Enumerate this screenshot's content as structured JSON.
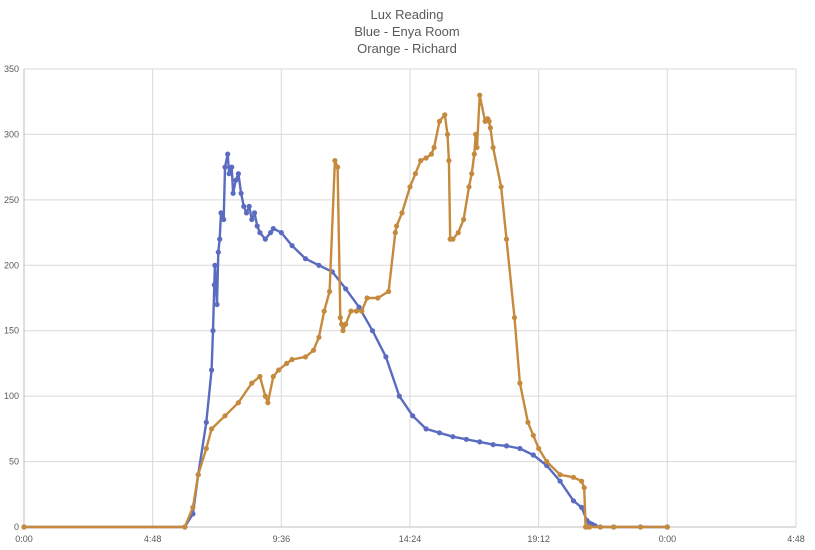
{
  "chart_data": {
    "type": "line",
    "title_lines": [
      "Lux Reading",
      "Blue - Enya Room",
      "Orange - Richard"
    ],
    "xlabel": "",
    "ylabel": "",
    "x_unit": "hours since first midnight",
    "xlim": [
      0,
      28.8
    ],
    "ylim": [
      0,
      350
    ],
    "x_ticks": [
      {
        "value": 0,
        "label": "0:00"
      },
      {
        "value": 4.8,
        "label": "4:48"
      },
      {
        "value": 9.6,
        "label": "9:36"
      },
      {
        "value": 14.4,
        "label": "14:24"
      },
      {
        "value": 19.2,
        "label": "19:12"
      },
      {
        "value": 24,
        "label": "0:00"
      },
      {
        "value": 28.8,
        "label": "4:48"
      }
    ],
    "y_ticks": [
      0,
      50,
      100,
      150,
      200,
      250,
      300,
      350
    ],
    "grid": true,
    "legend": "none",
    "series": [
      {
        "color": "#5b6cc0",
        "x": [
          0,
          6.0,
          6.3,
          6.5,
          6.8,
          7.0,
          7.05,
          7.1,
          7.12,
          7.2,
          7.25,
          7.3,
          7.35,
          7.45,
          7.5,
          7.6,
          7.65,
          7.75,
          7.8,
          7.9,
          8.0,
          8.1,
          8.2,
          8.3,
          8.4,
          8.5,
          8.6,
          8.7,
          8.8,
          9.0,
          9.2,
          9.3,
          9.6,
          10.0,
          10.5,
          11.0,
          11.5,
          12.0,
          12.5,
          13.0,
          13.5,
          14.0,
          14.5,
          15.0,
          15.5,
          16.0,
          16.5,
          17.0,
          17.5,
          18.0,
          18.5,
          19.0,
          19.5,
          20.0,
          20.5,
          20.8,
          21.0,
          21.1,
          21.2,
          21.3,
          21.5,
          22.0,
          23.0,
          24.0
        ],
        "y": [
          0,
          0,
          10,
          40,
          80,
          120,
          150,
          185,
          200,
          170,
          210,
          220,
          240,
          235,
          275,
          285,
          270,
          275,
          255,
          265,
          270,
          255,
          245,
          240,
          245,
          235,
          240,
          230,
          225,
          220,
          225,
          228,
          225,
          215,
          205,
          200,
          195,
          182,
          168,
          150,
          130,
          100,
          85,
          75,
          72,
          69,
          67,
          65,
          63,
          62,
          60,
          55,
          47,
          35,
          20,
          15,
          5,
          3,
          2,
          1,
          0,
          0,
          0,
          0
        ]
      },
      {
        "color": "#c58a3d",
        "x": [
          0,
          6.0,
          6.3,
          6.5,
          6.8,
          7.0,
          7.5,
          8.0,
          8.5,
          8.8,
          9.0,
          9.1,
          9.3,
          9.5,
          9.8,
          10.0,
          10.5,
          10.8,
          11.0,
          11.2,
          11.4,
          11.6,
          11.7,
          11.8,
          11.85,
          11.9,
          12.0,
          12.2,
          12.4,
          12.6,
          12.8,
          13.2,
          13.6,
          13.85,
          13.9,
          14.1,
          14.4,
          14.6,
          14.8,
          15.0,
          15.2,
          15.3,
          15.5,
          15.7,
          15.8,
          15.85,
          15.9,
          16.0,
          16.2,
          16.4,
          16.6,
          16.7,
          16.8,
          16.85,
          16.9,
          17.0,
          17.2,
          17.3,
          17.35,
          17.4,
          17.5,
          17.8,
          18.0,
          18.3,
          18.5,
          18.8,
          19.0,
          19.2,
          19.5,
          20.0,
          20.5,
          20.8,
          20.9,
          20.95,
          21.0,
          21.1,
          21.5,
          22.0,
          23.0,
          24.0
        ],
        "y": [
          0,
          0,
          15,
          40,
          60,
          75,
          85,
          95,
          110,
          115,
          100,
          95,
          115,
          120,
          125,
          128,
          130,
          135,
          145,
          165,
          180,
          280,
          275,
          160,
          155,
          150,
          155,
          165,
          165,
          165,
          175,
          175,
          180,
          225,
          230,
          240,
          260,
          270,
          280,
          282,
          285,
          290,
          310,
          315,
          300,
          280,
          220,
          220,
          225,
          235,
          260,
          270,
          285,
          300,
          290,
          330,
          310,
          312,
          310,
          305,
          290,
          260,
          220,
          160,
          110,
          80,
          70,
          60,
          50,
          40,
          38,
          35,
          30,
          0,
          0,
          0,
          0,
          0,
          0,
          0
        ]
      }
    ]
  }
}
